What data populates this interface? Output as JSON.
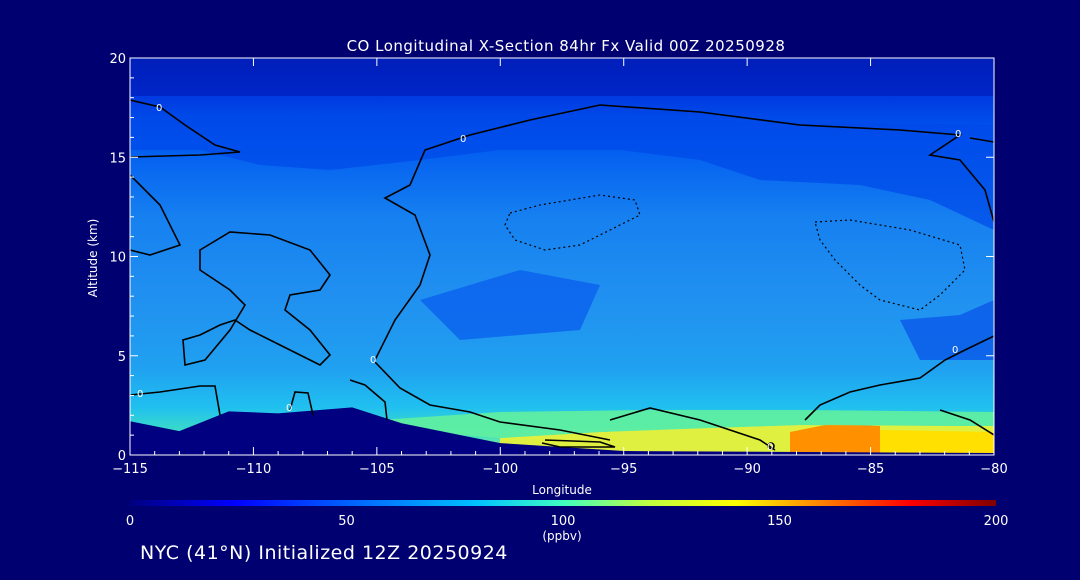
{
  "chart_data": {
    "type": "contour",
    "title": "CO Longitudinal X-Section 84hr  Fx Valid 00Z 20250928",
    "xlabel": "Longitude",
    "ylabel": "Altitude (km)",
    "xlim": [
      -115,
      -80
    ],
    "ylim": [
      0,
      20
    ],
    "x_ticks": [
      -115,
      -110,
      -105,
      -100,
      -95,
      -90,
      -85,
      -80
    ],
    "x_tick_labels": [
      "−115",
      "−110",
      "−105",
      "−100",
      "−95",
      "−90",
      "−85",
      "−80"
    ],
    "y_ticks": [
      0,
      5,
      10,
      15,
      20
    ],
    "y_tick_labels": [
      "0",
      "5",
      "10",
      "15",
      "20"
    ],
    "colorbar": {
      "min": 0,
      "max": 200,
      "ticks": [
        0,
        50,
        100,
        150,
        200
      ],
      "tick_labels": [
        "0",
        "50",
        "100",
        "150",
        "200"
      ],
      "units": "(ppbv)",
      "colors": [
        "#000080",
        "#0000ff",
        "#0060ff",
        "#00c0ff",
        "#40ffc0",
        "#c0ff40",
        "#ffff00",
        "#ff8000",
        "#ff0000",
        "#800000"
      ]
    },
    "contour_labels": [
      "0",
      "0",
      "0",
      "0",
      "0",
      "0",
      "0",
      "0",
      "0"
    ],
    "terrain_km": [
      {
        "lon": -115,
        "alt": 1.7
      },
      {
        "lon": -113,
        "alt": 1.2
      },
      {
        "lon": -111,
        "alt": 2.2
      },
      {
        "lon": -109,
        "alt": 2.1
      },
      {
        "lon": -106,
        "alt": 2.4
      },
      {
        "lon": -104,
        "alt": 1.6
      },
      {
        "lon": -100,
        "alt": 0.6
      },
      {
        "lon": -95,
        "alt": 0.2
      },
      {
        "lon": -80,
        "alt": 0.1
      }
    ]
  },
  "footer": {
    "location_text": "NYC (41°N) Initialized 12Z 20250924"
  },
  "colors": {
    "background": "#000070",
    "text": "#ffffff"
  }
}
